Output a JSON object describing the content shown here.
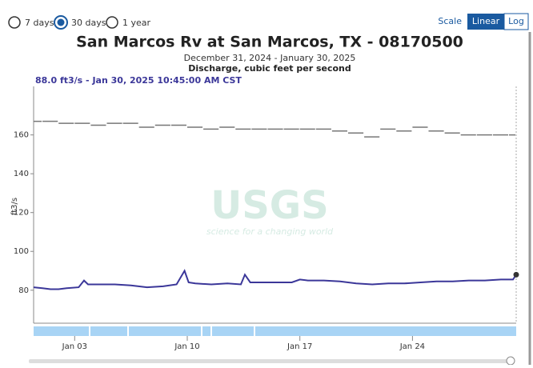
{
  "controls": {
    "periods": [
      "7 days",
      "30 days",
      "1 year"
    ],
    "scale_label": "Scale",
    "scales": [
      "Linear",
      "Log"
    ]
  },
  "chart_data": {
    "type": "line",
    "title": "San Marcos Rv at San Marcos, TX - 08170500",
    "subtitle": "December 31, 2024 - January 30, 2025",
    "subtitle2": "Discharge, cubic feet per second",
    "tooltip": "88.0 ft3/s - Jan 30, 2025 10:45:00 AM CST",
    "watermark": "USGS",
    "watermark_tagline": "science for a changing world",
    "y_label": "ft3/s",
    "xlim": [
      "2024-12-31T10:45",
      "2025-01-30T10:45"
    ],
    "xticks": [
      {
        "value": "2025-01-03T00:00",
        "label": "Jan 03"
      },
      {
        "value": "2025-01-10T00:00",
        "label": "Jan 10"
      },
      {
        "value": "2025-01-17T00:00",
        "label": "Jan 17"
      },
      {
        "value": "2025-01-24T00:00",
        "label": "Jan 24"
      }
    ],
    "ylim": [
      63,
      185
    ],
    "yticks": [
      80,
      100,
      120,
      140,
      160
    ],
    "series": [
      {
        "color": "#3b3799",
        "x": [
          "2024-12-31T10:45",
          "2025-01-01T00:00",
          "2025-01-01T12:00",
          "2025-01-02T00:00",
          "2025-01-02T12:00",
          "2025-01-03T06:00",
          "2025-01-03T14:00",
          "2025-01-03T20:00",
          "2025-01-04T12:00",
          "2025-01-05T12:00",
          "2025-01-06T12:00",
          "2025-01-07T12:00",
          "2025-01-08T12:00",
          "2025-01-09T08:00",
          "2025-01-09T20:00",
          "2025-01-10T02:00",
          "2025-01-10T12:00",
          "2025-01-11T12:00",
          "2025-01-12T12:00",
          "2025-01-13T08:00",
          "2025-01-13T14:00",
          "2025-01-13T22:00",
          "2025-01-14T12:00",
          "2025-01-15T12:00",
          "2025-01-16T12:00",
          "2025-01-17T00:00",
          "2025-01-17T12:00",
          "2025-01-18T12:00",
          "2025-01-19T12:00",
          "2025-01-20T12:00",
          "2025-01-21T12:00",
          "2025-01-22T12:00",
          "2025-01-23T12:00",
          "2025-01-24T12:00",
          "2025-01-25T12:00",
          "2025-01-26T12:00",
          "2025-01-27T12:00",
          "2025-01-28T12:00",
          "2025-01-29T12:00",
          "2025-01-30T06:00",
          "2025-01-30T10:45"
        ],
        "values": [
          81.5,
          81,
          80.5,
          80.5,
          81,
          81.5,
          85,
          83,
          83,
          83,
          82.5,
          81.5,
          82,
          83,
          90,
          84,
          83.5,
          83,
          83.5,
          83,
          88,
          84,
          84,
          84,
          84,
          85.5,
          85,
          85,
          84.5,
          83.5,
          83,
          83.5,
          83.5,
          84,
          84.5,
          84.5,
          85,
          85,
          85.5,
          85.5,
          88
        ]
      },
      {
        "color": "#777777",
        "step": true,
        "x": [
          "2024-12-31T00:00",
          "2025-01-01T00:00",
          "2025-01-02T00:00",
          "2025-01-03T00:00",
          "2025-01-04T00:00",
          "2025-01-05T00:00",
          "2025-01-06T00:00",
          "2025-01-07T00:00",
          "2025-01-08T00:00",
          "2025-01-09T00:00",
          "2025-01-10T00:00",
          "2025-01-11T00:00",
          "2025-01-12T00:00",
          "2025-01-13T00:00",
          "2025-01-14T00:00",
          "2025-01-15T00:00",
          "2025-01-16T00:00",
          "2025-01-17T00:00",
          "2025-01-18T00:00",
          "2025-01-19T00:00",
          "2025-01-20T00:00",
          "2025-01-21T00:00",
          "2025-01-22T00:00",
          "2025-01-23T00:00",
          "2025-01-24T00:00",
          "2025-01-25T00:00",
          "2025-01-26T00:00",
          "2025-01-27T00:00",
          "2025-01-28T00:00",
          "2025-01-29T00:00",
          "2025-01-30T00:00"
        ],
        "values": [
          167,
          167,
          166,
          166,
          165,
          166,
          166,
          164,
          165,
          165,
          164,
          163,
          164,
          163,
          163,
          163,
          163,
          163,
          163,
          162,
          161,
          159,
          163,
          162,
          164,
          162,
          161,
          160,
          160,
          160,
          160
        ]
      }
    ]
  }
}
